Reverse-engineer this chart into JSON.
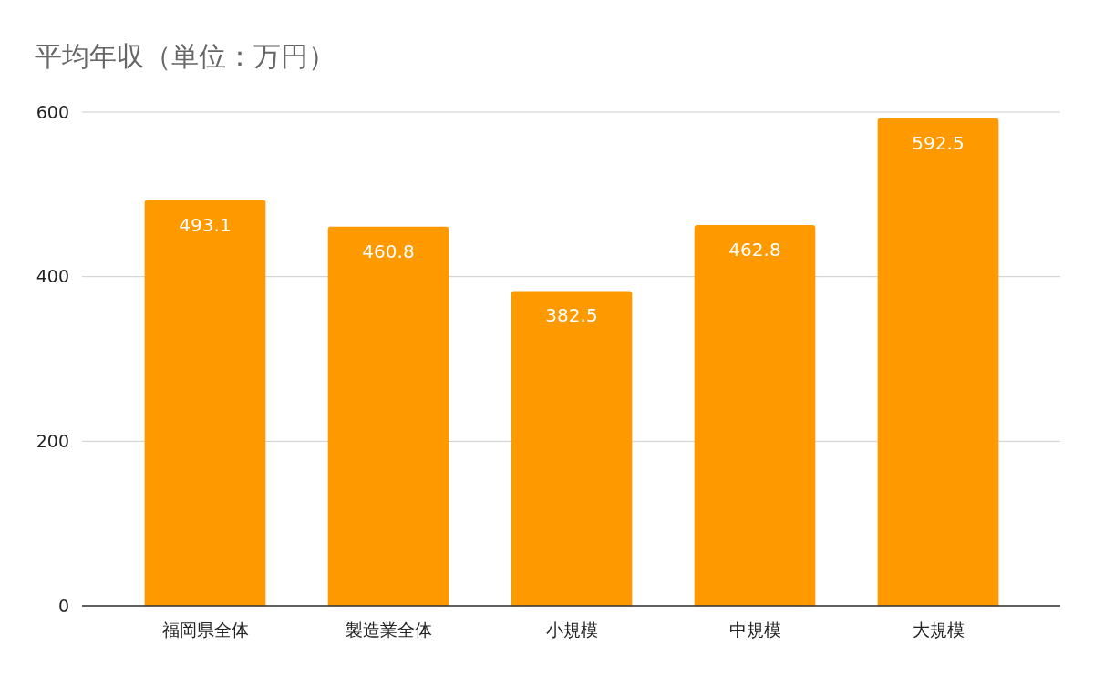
{
  "chart_data": {
    "type": "bar",
    "title": "平均年収（単位：万円）",
    "categories": [
      "福岡県全体",
      "製造業全体",
      "小規模",
      "中規模",
      "大規模"
    ],
    "values": [
      493.1,
      460.8,
      382.5,
      462.8,
      592.5
    ],
    "color": "#ff9900",
    "ylim": [
      0,
      600
    ],
    "yticks": [
      0,
      200,
      400,
      600
    ],
    "grid": "y",
    "data_labels": true
  }
}
